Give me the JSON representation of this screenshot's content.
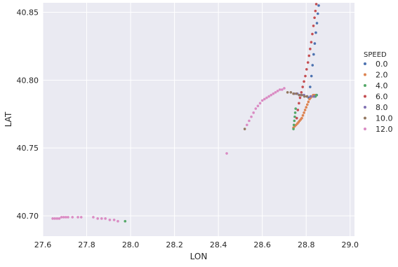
{
  "chart_data": {
    "type": "scatter",
    "title": "",
    "xlabel": "LON",
    "ylabel": "LAT",
    "xlim": [
      27.6,
      29.02
    ],
    "ylim": [
      40.685,
      40.857
    ],
    "xticks": [
      27.6,
      27.8,
      28.0,
      28.2,
      28.4,
      28.6,
      28.8,
      29.0
    ],
    "xtick_labels": [
      "27.6",
      "27.8",
      "28.0",
      "28.2",
      "28.4",
      "28.6",
      "28.8",
      "29.0"
    ],
    "yticks": [
      40.7,
      40.75,
      40.8,
      40.85
    ],
    "ytick_labels": [
      "40.70",
      "40.75",
      "40.80",
      "40.85"
    ],
    "grid": true,
    "background": "#eaeaf2",
    "legend": {
      "title": "SPEED",
      "placement": "right"
    },
    "series": [
      {
        "name": "0.0",
        "color": "#4c72b0",
        "points": [
          [
            28.812,
            40.787
          ],
          [
            28.818,
            40.795
          ],
          [
            28.824,
            40.803
          ],
          [
            28.829,
            40.811
          ],
          [
            28.834,
            40.819
          ],
          [
            28.839,
            40.827
          ],
          [
            28.844,
            40.835
          ],
          [
            28.849,
            40.842
          ],
          [
            28.853,
            40.849
          ],
          [
            28.857,
            40.855
          ],
          [
            28.83,
            40.788
          ],
          [
            28.84,
            40.788
          ],
          [
            28.848,
            40.789
          ]
        ]
      },
      {
        "name": "2.0",
        "color": "#dd8452",
        "points": [
          [
            28.742,
            40.765
          ],
          [
            28.748,
            40.766
          ],
          [
            28.754,
            40.767
          ],
          [
            28.76,
            40.768
          ],
          [
            28.765,
            40.769
          ],
          [
            28.77,
            40.77
          ],
          [
            28.775,
            40.771
          ],
          [
            28.78,
            40.772
          ],
          [
            28.785,
            40.774
          ],
          [
            28.79,
            40.776
          ],
          [
            28.795,
            40.778
          ],
          [
            28.8,
            40.78
          ],
          [
            28.805,
            40.782
          ],
          [
            28.81,
            40.784
          ],
          [
            28.815,
            40.786
          ],
          [
            28.82,
            40.787
          ],
          [
            28.826,
            40.788
          ],
          [
            28.832,
            40.789
          ],
          [
            28.838,
            40.789
          ],
          [
            28.844,
            40.789
          ]
        ]
      },
      {
        "name": "4.0",
        "color": "#55a868",
        "points": [
          [
            27.975,
            40.696
          ],
          [
            28.742,
            40.764
          ],
          [
            28.744,
            40.767
          ],
          [
            28.746,
            40.77
          ],
          [
            28.748,
            40.773
          ],
          [
            28.75,
            40.776
          ],
          [
            28.752,
            40.779
          ],
          [
            28.842,
            40.788
          ],
          [
            28.847,
            40.789
          ]
        ]
      },
      {
        "name": "6.0",
        "color": "#c44e52",
        "points": [
          [
            28.757,
            40.772
          ],
          [
            28.762,
            40.778
          ],
          [
            28.767,
            40.783
          ],
          [
            28.772,
            40.787
          ],
          [
            28.778,
            40.791
          ],
          [
            28.784,
            40.795
          ],
          [
            28.79,
            40.799
          ],
          [
            28.796,
            40.803
          ],
          [
            28.802,
            40.808
          ],
          [
            28.808,
            40.813
          ],
          [
            28.813,
            40.818
          ],
          [
            28.818,
            40.823
          ],
          [
            28.823,
            40.828
          ],
          [
            28.828,
            40.834
          ],
          [
            28.833,
            40.84
          ],
          [
            28.838,
            40.846
          ],
          [
            28.842,
            40.851
          ],
          [
            28.846,
            40.856
          ]
        ]
      },
      {
        "name": "8.0",
        "color": "#8172b3",
        "points": [
          [
            28.745,
            40.79
          ],
          [
            28.76,
            40.79
          ],
          [
            28.775,
            40.789
          ],
          [
            28.79,
            40.789
          ],
          [
            28.805,
            40.788
          ],
          [
            28.82,
            40.788
          ],
          [
            28.835,
            40.788
          ]
        ]
      },
      {
        "name": "10.0",
        "color": "#937860",
        "points": [
          [
            28.52,
            40.764
          ],
          [
            28.715,
            40.791
          ],
          [
            28.73,
            40.791
          ],
          [
            28.742,
            40.79
          ],
          [
            28.755,
            40.79
          ],
          [
            28.768,
            40.789
          ],
          [
            28.78,
            40.789
          ],
          [
            28.792,
            40.788
          ],
          [
            28.803,
            40.788
          ]
        ]
      },
      {
        "name": "12.0",
        "color": "#da8bc3",
        "points": [
          [
            27.645,
            40.698
          ],
          [
            27.655,
            40.698
          ],
          [
            27.665,
            40.698
          ],
          [
            27.675,
            40.698
          ],
          [
            27.685,
            40.699
          ],
          [
            27.695,
            40.699
          ],
          [
            27.705,
            40.699
          ],
          [
            27.715,
            40.699
          ],
          [
            27.735,
            40.699
          ],
          [
            27.76,
            40.699
          ],
          [
            27.775,
            40.699
          ],
          [
            27.83,
            40.699
          ],
          [
            27.85,
            40.698
          ],
          [
            27.868,
            40.698
          ],
          [
            27.885,
            40.698
          ],
          [
            27.905,
            40.697
          ],
          [
            27.925,
            40.697
          ],
          [
            27.942,
            40.696
          ],
          [
            28.438,
            40.746
          ],
          [
            28.53,
            40.767
          ],
          [
            28.54,
            40.77
          ],
          [
            28.55,
            40.773
          ],
          [
            28.56,
            40.776
          ],
          [
            28.57,
            40.779
          ],
          [
            28.58,
            40.781
          ],
          [
            28.59,
            40.783
          ],
          [
            28.6,
            40.785
          ],
          [
            28.61,
            40.786
          ],
          [
            28.62,
            40.787
          ],
          [
            28.63,
            40.788
          ],
          [
            28.64,
            40.789
          ],
          [
            28.65,
            40.79
          ],
          [
            28.66,
            40.791
          ],
          [
            28.67,
            40.792
          ],
          [
            28.68,
            40.793
          ],
          [
            28.69,
            40.793
          ],
          [
            28.7,
            40.794
          ]
        ]
      }
    ]
  }
}
